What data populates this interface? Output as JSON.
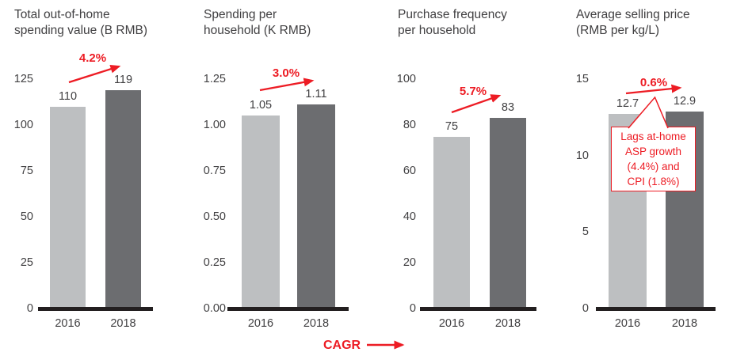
{
  "chart_data": [
    {
      "type": "bar",
      "title": "Total out-of-home spending value (B RMB)",
      "title_lines": [
        "Total out-of-home",
        "spending value (B RMB)"
      ],
      "categories": [
        "2016",
        "2018"
      ],
      "values": [
        110,
        119
      ],
      "value_labels": [
        "110",
        "119"
      ],
      "cagr_label": "4.2%",
      "xlabel": "",
      "ylabel": "",
      "ylim": [
        0,
        125
      ],
      "yticks": [
        0,
        25,
        50,
        75,
        100,
        125
      ],
      "ytick_labels": [
        "0",
        "25",
        "50",
        "75",
        "100",
        "125"
      ],
      "grid": false,
      "legend": false
    },
    {
      "type": "bar",
      "title": "Spending per household (K RMB)",
      "title_lines": [
        "Spending per",
        "household (K RMB)"
      ],
      "categories": [
        "2016",
        "2018"
      ],
      "values": [
        1.05,
        1.11
      ],
      "value_labels": [
        "1.05",
        "1.11"
      ],
      "cagr_label": "3.0%",
      "xlabel": "",
      "ylabel": "",
      "ylim": [
        0,
        1.25
      ],
      "yticks": [
        0,
        0.25,
        0.5,
        0.75,
        1.0,
        1.25
      ],
      "ytick_labels": [
        "0.00",
        "0.25",
        "0.50",
        "0.75",
        "1.00",
        "1.25"
      ],
      "grid": false,
      "legend": false
    },
    {
      "type": "bar",
      "title": "Purchase frequency per household",
      "title_lines": [
        "Purchase frequency",
        "per household"
      ],
      "categories": [
        "2016",
        "2018"
      ],
      "values": [
        75,
        83
      ],
      "value_labels": [
        "75",
        "83"
      ],
      "cagr_label": "5.7%",
      "xlabel": "",
      "ylabel": "",
      "ylim": [
        0,
        100
      ],
      "yticks": [
        0,
        20,
        40,
        60,
        80,
        100
      ],
      "ytick_labels": [
        "0",
        "20",
        "40",
        "60",
        "80",
        "100"
      ],
      "grid": false,
      "legend": false
    },
    {
      "type": "bar",
      "title": "Average selling price (RMB per kg/L)",
      "title_lines": [
        "Average selling price",
        "(RMB per kg/L)"
      ],
      "categories": [
        "2016",
        "2018"
      ],
      "values": [
        12.7,
        12.9
      ],
      "value_labels": [
        "12.7",
        "12.9"
      ],
      "cagr_label": "0.6%",
      "xlabel": "",
      "ylabel": "",
      "ylim": [
        0,
        15
      ],
      "yticks": [
        0,
        5,
        10,
        15
      ],
      "ytick_labels": [
        "0",
        "5",
        "10",
        "15"
      ],
      "grid": false,
      "legend": false,
      "annotation": {
        "text": "Lags at-home ASP growth (4.4%) and CPI (1.8%)",
        "lines": [
          "Lags at-home",
          "ASP growth",
          "(4.4%) and",
          "CPI (1.8%)"
        ]
      }
    }
  ],
  "footer": {
    "cagr_label": "CAGR"
  },
  "colors": {
    "bar_2016": "#bdbfc1",
    "bar_2018": "#6c6d70",
    "axis": "#231f20",
    "accent_red": "#ed1c24",
    "text": "#414042"
  }
}
